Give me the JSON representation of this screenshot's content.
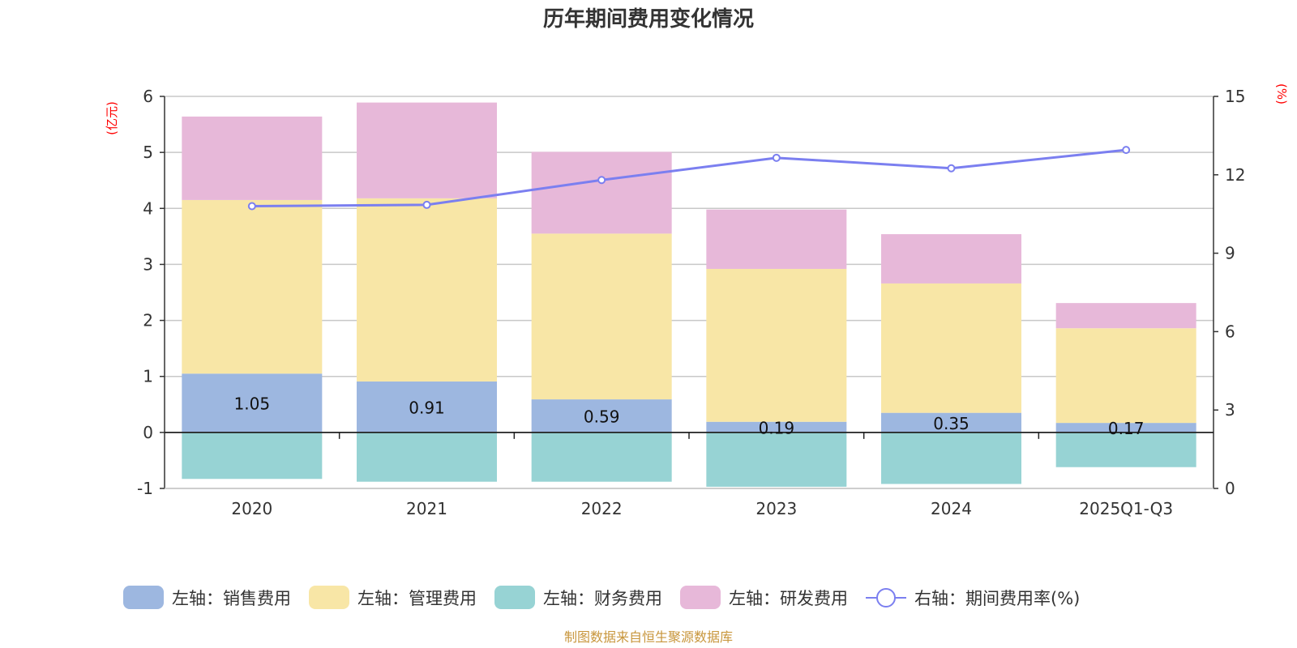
{
  "chart_data": {
    "type": "bar",
    "title": "历年期间费用变化情况",
    "categories": [
      "2020",
      "2021",
      "2022",
      "2023",
      "2024",
      "2025Q1-Q3"
    ],
    "left_axis": {
      "unit": "(亿元)",
      "ylim": [
        -1,
        6
      ],
      "ticks": [
        "-1",
        "0",
        "1",
        "2",
        "3",
        "4",
        "5",
        "6"
      ]
    },
    "right_axis": {
      "unit": "(%)",
      "ylim": [
        0,
        15
      ],
      "ticks": [
        "0",
        "3",
        "6",
        "9",
        "12",
        "15"
      ]
    },
    "series": [
      {
        "name": "左轴：销售费用",
        "kind": "bar",
        "color": "#9db7e0",
        "values": [
          1.05,
          0.91,
          0.59,
          0.19,
          0.35,
          0.17
        ],
        "labels": [
          "1.05",
          "0.91",
          "0.59",
          "0.19",
          "0.35",
          "0.17"
        ]
      },
      {
        "name": "左轴：管理费用",
        "kind": "bar",
        "color": "#f8e6a6",
        "values": [
          3.1,
          3.27,
          2.96,
          2.73,
          2.31,
          1.69
        ]
      },
      {
        "name": "左轴：财务费用",
        "kind": "bar",
        "color": "#97d3d4",
        "values": [
          -0.83,
          -0.88,
          -0.88,
          -0.97,
          -0.92,
          -0.62
        ]
      },
      {
        "name": "左轴：研发费用",
        "kind": "bar",
        "color": "#e7b8d9",
        "values": [
          1.49,
          1.71,
          1.46,
          1.06,
          0.88,
          0.45
        ]
      },
      {
        "name": "右轴：期间费用率(%)",
        "kind": "line",
        "color": "#7b7ff0",
        "values": [
          10.8,
          10.85,
          11.8,
          12.65,
          12.25,
          12.95
        ]
      }
    ],
    "grid": true
  },
  "source": "制图数据来自恒生聚源数据库"
}
